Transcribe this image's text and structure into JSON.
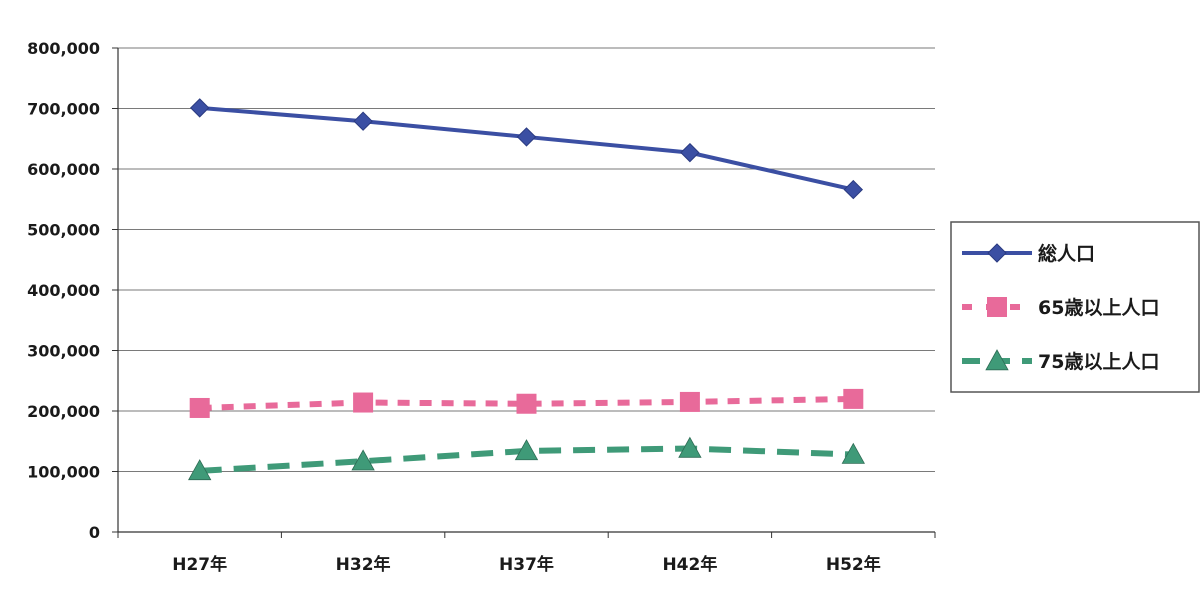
{
  "chart_data": {
    "type": "line",
    "categories": [
      "H27年",
      "H32年",
      "H37年",
      "H42年",
      "H52年"
    ],
    "series": [
      {
        "name": "総人口",
        "values": [
          701000,
          679000,
          653000,
          627000,
          566000
        ],
        "color": "#3b4fa3",
        "marker": "diamond",
        "line_style": "solid"
      },
      {
        "name": "65歳以上人口",
        "values": [
          205000,
          214000,
          212000,
          215000,
          220000
        ],
        "color": "#e86a9a",
        "marker": "square",
        "line_style": "dashed"
      },
      {
        "name": "75歳以上人口",
        "values": [
          101000,
          117000,
          134000,
          138000,
          128000
        ],
        "color": "#3f9a78",
        "marker": "triangle",
        "line_style": "dashed"
      }
    ],
    "yticks": [
      "0",
      "100,000",
      "200,000",
      "300,000",
      "400,000",
      "500,000",
      "600,000",
      "700,000",
      "800,000"
    ],
    "ylim": [
      0,
      800000
    ],
    "grid": true,
    "legend_position": "right"
  }
}
